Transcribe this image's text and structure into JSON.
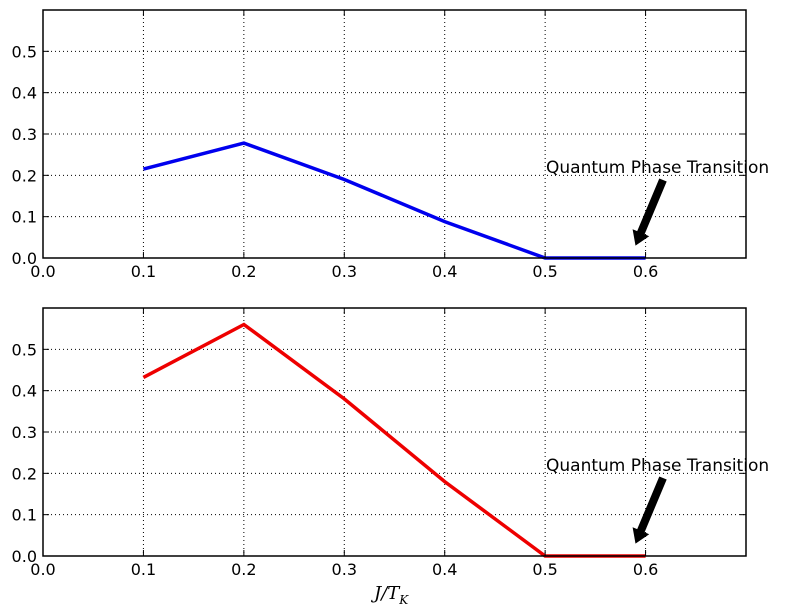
{
  "chart_data": [
    {
      "type": "line",
      "color": "#0000ee",
      "x": [
        0.1,
        0.2,
        0.3,
        0.4,
        0.5,
        0.6
      ],
      "values": [
        0.215,
        0.278,
        0.19,
        0.088,
        0.0,
        0.0
      ],
      "xlim": [
        0.0,
        0.7
      ],
      "ylim": [
        0.0,
        0.6
      ],
      "xticks": [
        "0.0",
        "0.1",
        "0.2",
        "0.3",
        "0.4",
        "0.5",
        "0.6"
      ],
      "yticks": [
        "0.0",
        "0.1",
        "0.2",
        "0.3",
        "0.4",
        "0.5"
      ],
      "grid": true,
      "annotation": {
        "text": "Quantum Phase Transition",
        "arrow_to": [
          0.59,
          0.03
        ]
      }
    },
    {
      "type": "line",
      "color": "#ee0000",
      "x": [
        0.1,
        0.2,
        0.3,
        0.4,
        0.5,
        0.6
      ],
      "values": [
        0.432,
        0.56,
        0.38,
        0.18,
        0.0,
        0.0
      ],
      "xlim": [
        0.0,
        0.7
      ],
      "ylim": [
        0.0,
        0.6
      ],
      "xticks": [
        "0.0",
        "0.1",
        "0.2",
        "0.3",
        "0.4",
        "0.5",
        "0.6"
      ],
      "yticks": [
        "0.0",
        "0.1",
        "0.2",
        "0.3",
        "0.4",
        "0.5"
      ],
      "grid": true,
      "annotation": {
        "text": "Quantum Phase Transition",
        "arrow_to": [
          0.59,
          0.03
        ]
      }
    }
  ],
  "xlabel": {
    "main": "J/T",
    "sub": "K"
  }
}
